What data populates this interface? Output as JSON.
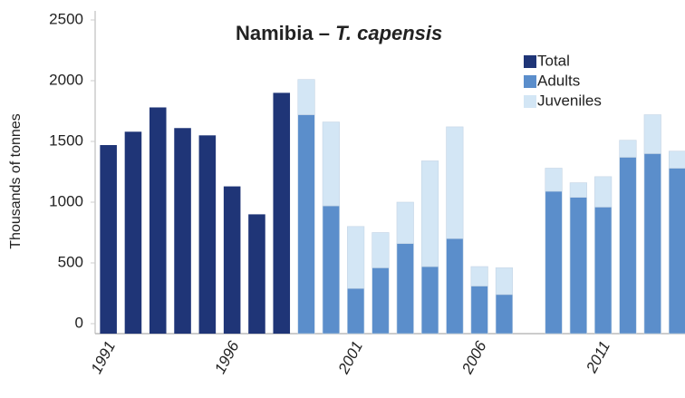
{
  "chart_data": {
    "type": "stacked-bar",
    "title": "Namibia –",
    "title_italic": "T. capensis",
    "ylabel": "Thousands of tonnes",
    "categories": [
      "1991",
      null,
      null,
      null,
      null,
      "1996",
      null,
      null,
      null,
      null,
      "2001",
      null,
      null,
      null,
      null,
      "2006",
      null,
      null,
      null,
      null,
      "2011",
      null,
      null,
      null
    ],
    "series": [
      {
        "name": "Total",
        "color": "#1f3577",
        "values": [
          1470,
          1580,
          1780,
          1610,
          1550,
          1130,
          900,
          1900,
          null,
          null,
          null,
          null,
          null,
          null,
          null,
          null,
          null,
          null,
          null,
          null,
          null,
          null,
          null,
          null
        ]
      },
      {
        "name": "Adults",
        "color": "#5b8ecb",
        "values": [
          null,
          null,
          null,
          null,
          null,
          null,
          null,
          null,
          1720,
          970,
          290,
          460,
          660,
          470,
          700,
          310,
          240,
          null,
          1090,
          1040,
          960,
          1370,
          1400,
          1280
        ]
      },
      {
        "name": "Juveniles",
        "color": "#d3e6f5",
        "values": [
          null,
          null,
          null,
          null,
          null,
          null,
          null,
          null,
          290,
          690,
          510,
          290,
          340,
          870,
          920,
          160,
          220,
          null,
          190,
          120,
          250,
          140,
          320,
          140
        ]
      }
    ],
    "ylim": [
      0,
      2500
    ],
    "yticks": [
      0,
      500,
      1000,
      1500,
      2000,
      2500
    ],
    "legend": "upper right"
  }
}
